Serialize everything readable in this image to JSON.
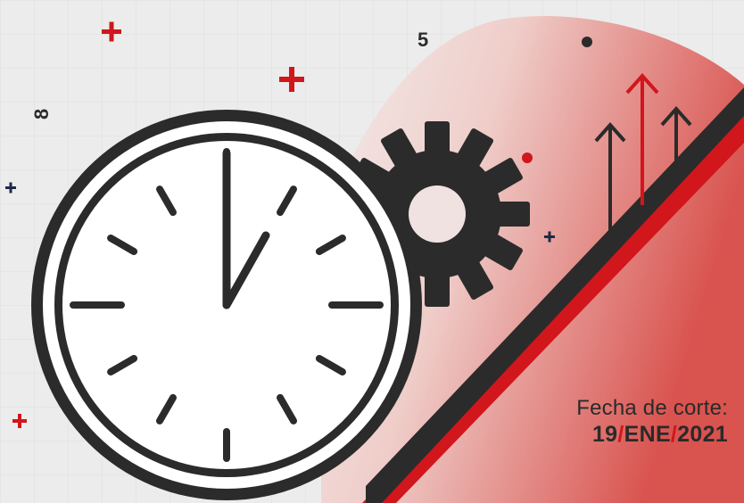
{
  "caption": {
    "label": "Fecha de corte:",
    "day": "19",
    "separator": "/",
    "month": "ENE",
    "year": "2021"
  },
  "scatter": {
    "digit_top": "5",
    "digit_left": "8"
  },
  "colors": {
    "background": "#ececec",
    "accent": "#d1161c",
    "dark": "#2b2b2b"
  },
  "icons": [
    "clock-icon",
    "gear-icon",
    "growth-arrows-icon",
    "plus-icon",
    "dot-icon"
  ]
}
